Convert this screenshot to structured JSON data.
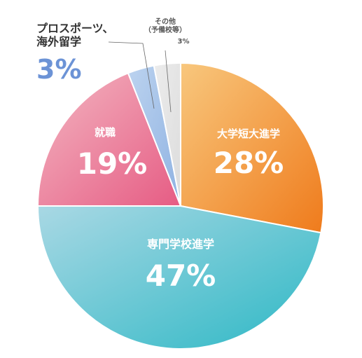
{
  "chart_data": {
    "type": "pie",
    "slices": [
      {
        "label": "大学短大進学",
        "value": 28,
        "value_label": "28%",
        "color_start": "#f8c77d",
        "color_end": "#ef7b1c",
        "label_color": "#ffffff"
      },
      {
        "label": "専門学校進学",
        "value": 47,
        "value_label": "47%",
        "color_start": "#a9d8e4",
        "color_end": "#2db8c5",
        "label_color": "#ffffff"
      },
      {
        "label": "就職",
        "value": 19,
        "value_label": "19%",
        "color_start": "#f3b6c1",
        "color_end": "#e65c84",
        "label_color": "#ffffff"
      },
      {
        "label": "プロスポーツ、\n海外留学",
        "value": 3,
        "value_label": "3%",
        "color_start": "#bcd3ef",
        "color_end": "#8fb2e2",
        "label_color": "#333333",
        "value_color": "#6c93d6"
      },
      {
        "label": "その他\n（予備校等）",
        "value": 3,
        "value_label": "3%",
        "color_start": "#ececec",
        "color_end": "#dcdcdc",
        "label_color": "#555555"
      }
    ],
    "start": "top",
    "direction": "clockwise"
  }
}
